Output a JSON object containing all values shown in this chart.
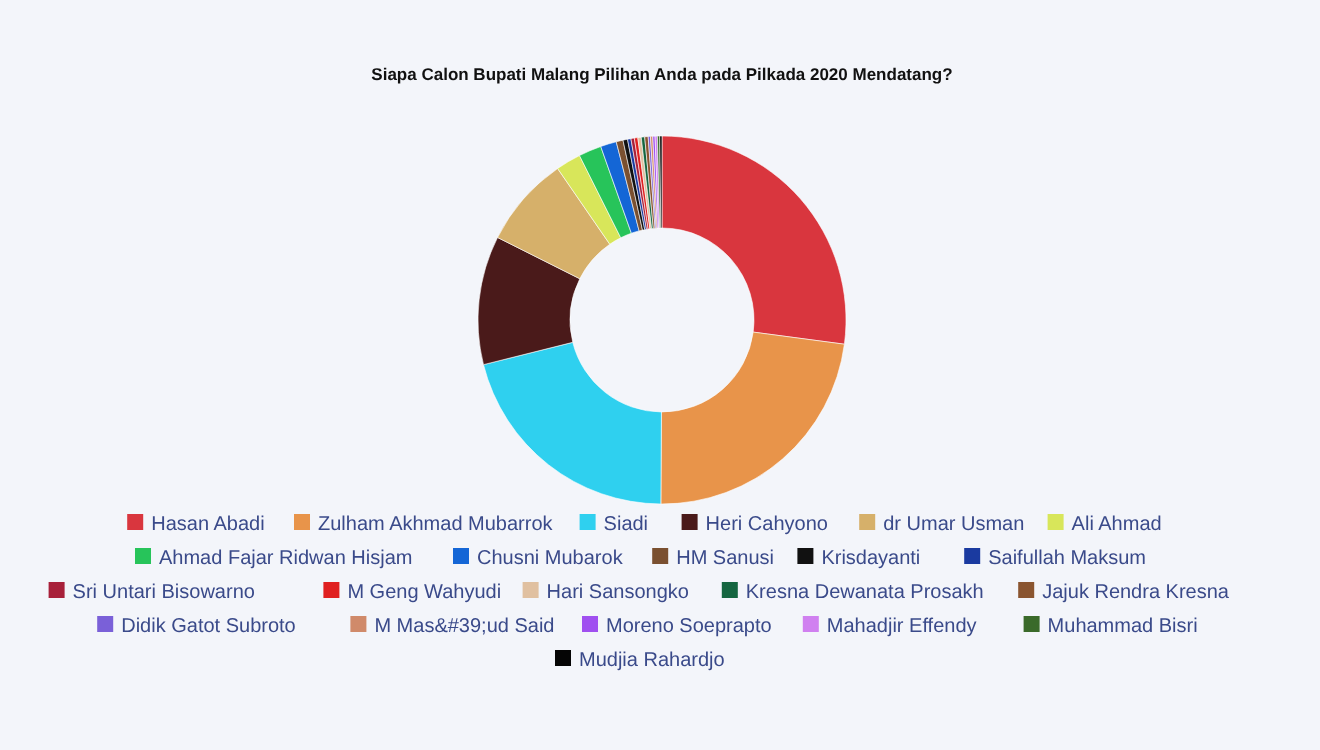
{
  "chart_data": {
    "type": "donut",
    "title": "Siapa Calon Bupati Malang Pilihan Anda pada Pilkada 2020 Mendatang?",
    "categories": [
      "Hasan Abadi",
      "Zulham Akhmad Mubarrok",
      "Siadi",
      "Heri Cahyono",
      "dr Umar Usman",
      "Ali Ahmad",
      "Ahmad Fajar Ridwan Hisjam",
      "Chusni Mubarok",
      "HM Sanusi",
      "Krisdayanti",
      "Saifullah Maksum",
      "Sri Untari  Bisowarno",
      "M Geng Wahyudi",
      "Hari Sansongko",
      "Kresna Dewanata Prosakh",
      "Jajuk Rendra Kresna",
      "Didik Gatot Subroto",
      "M Mas&#39;ud Said",
      "Moreno Soeprapto",
      "Mahadjir Effendy",
      "Muhammad Bisri",
      "Mudjia Rahardjo"
    ],
    "values": [
      27.1,
      23,
      21,
      11.3,
      8,
      2.2,
      2,
      1.4,
      0.6,
      0.4,
      0.3,
      0.3,
      0.3,
      0.3,
      0.3,
      0.3,
      0.2,
      0.2,
      0.2,
      0.2,
      0.2,
      0.2
    ],
    "colors": [
      "#d9363e",
      "#e8944a",
      "#2fd0ef",
      "#4a1a1a",
      "#d6b06a",
      "#d8e65a",
      "#27c45a",
      "#1466d6",
      "#7a5030",
      "#111111",
      "#1a3aa0",
      "#a8203a",
      "#e02020",
      "#e0c0a0",
      "#156640",
      "#8a5530",
      "#7a60d8",
      "#d08a6a",
      "#a050f0",
      "#d080f0",
      "#3a6a2a",
      "#050505"
    ],
    "legend": "bottom"
  }
}
